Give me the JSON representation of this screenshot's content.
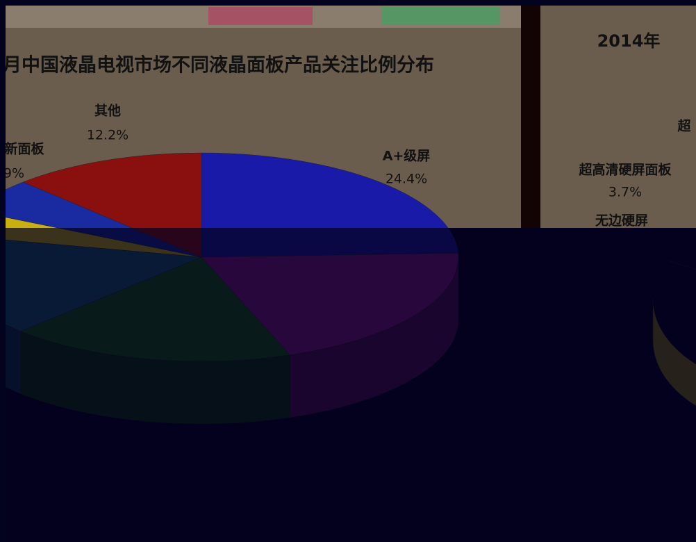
{
  "chart_data": [
    {
      "type": "pie",
      "title": "月中国液晶电视市场不同液晶面板产品关注比例分布",
      "categories": [
        "A+级屏",
        null,
        null,
        null,
        null,
        null,
        "其他"
      ],
      "values": [
        24.4,
        20,
        18,
        16,
        4,
        5.4,
        12.2
      ],
      "value_labels": [
        "24.4%",
        null,
        null,
        null,
        null,
        null,
        "12.2%"
      ],
      "colors": [
        "#1a1aa8",
        "#8a1a8a",
        "#1a5a10",
        "#1a5a78",
        "#c8b010",
        "#1a2aa0",
        "#8a1010"
      ],
      "annotations": [
        "新面板",
        "9%"
      ]
    },
    {
      "type": "pie",
      "title": "2014年",
      "categories": [
        "超高清硬屏面板"
      ],
      "values": [
        3.7
      ],
      "value_labels": [
        "3.7%"
      ],
      "colors": [
        "#d8c020"
      ],
      "annotations": [
        "超",
        "无边硬屏"
      ]
    }
  ]
}
